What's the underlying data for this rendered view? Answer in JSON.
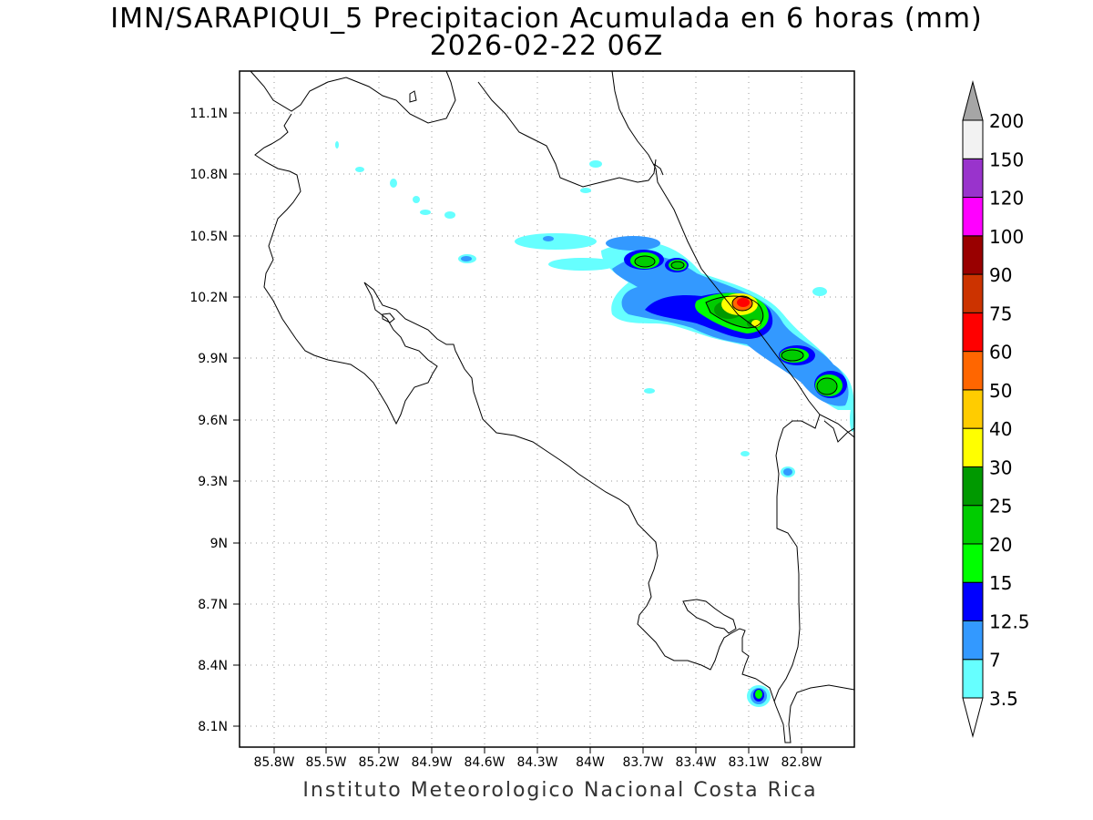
{
  "title": {
    "line1": "IMN/SARAPIQUI_5 Precipitacion Acumulada en 6 horas (mm)",
    "line2": "2026-02-22 06Z"
  },
  "credit": "Instituto Meteorologico Nacional Costa Rica",
  "map": {
    "lat_ticks": [
      "11.1N",
      "10.8N",
      "10.5N",
      "10.2N",
      "9.9N",
      "9.6N",
      "9.3N",
      "9N",
      "8.7N",
      "8.4N",
      "8.1N"
    ],
    "lon_ticks": [
      "85.8W",
      "85.5W",
      "85.2W",
      "84.9W",
      "84.6W",
      "84.3W",
      "84W",
      "83.7W",
      "83.4W",
      "83.1W",
      "82.8W"
    ],
    "grid": "dotted"
  },
  "colorbar": {
    "labels": [
      "3.5",
      "7",
      "12.5",
      "15",
      "20",
      "25",
      "30",
      "40",
      "50",
      "60",
      "75",
      "90",
      "100",
      "120",
      "150",
      "200"
    ],
    "colors": [
      "#ffffff",
      "#66ffff",
      "#3399ff",
      "#0000ff",
      "#00ff00",
      "#00cc00",
      "#009900",
      "#ffff00",
      "#ffcc00",
      "#ff6600",
      "#ff0000",
      "#cc3300",
      "#990000",
      "#ff00ff",
      "#9933cc",
      "#f2f2f2",
      "#a6a6a6"
    ]
  }
}
